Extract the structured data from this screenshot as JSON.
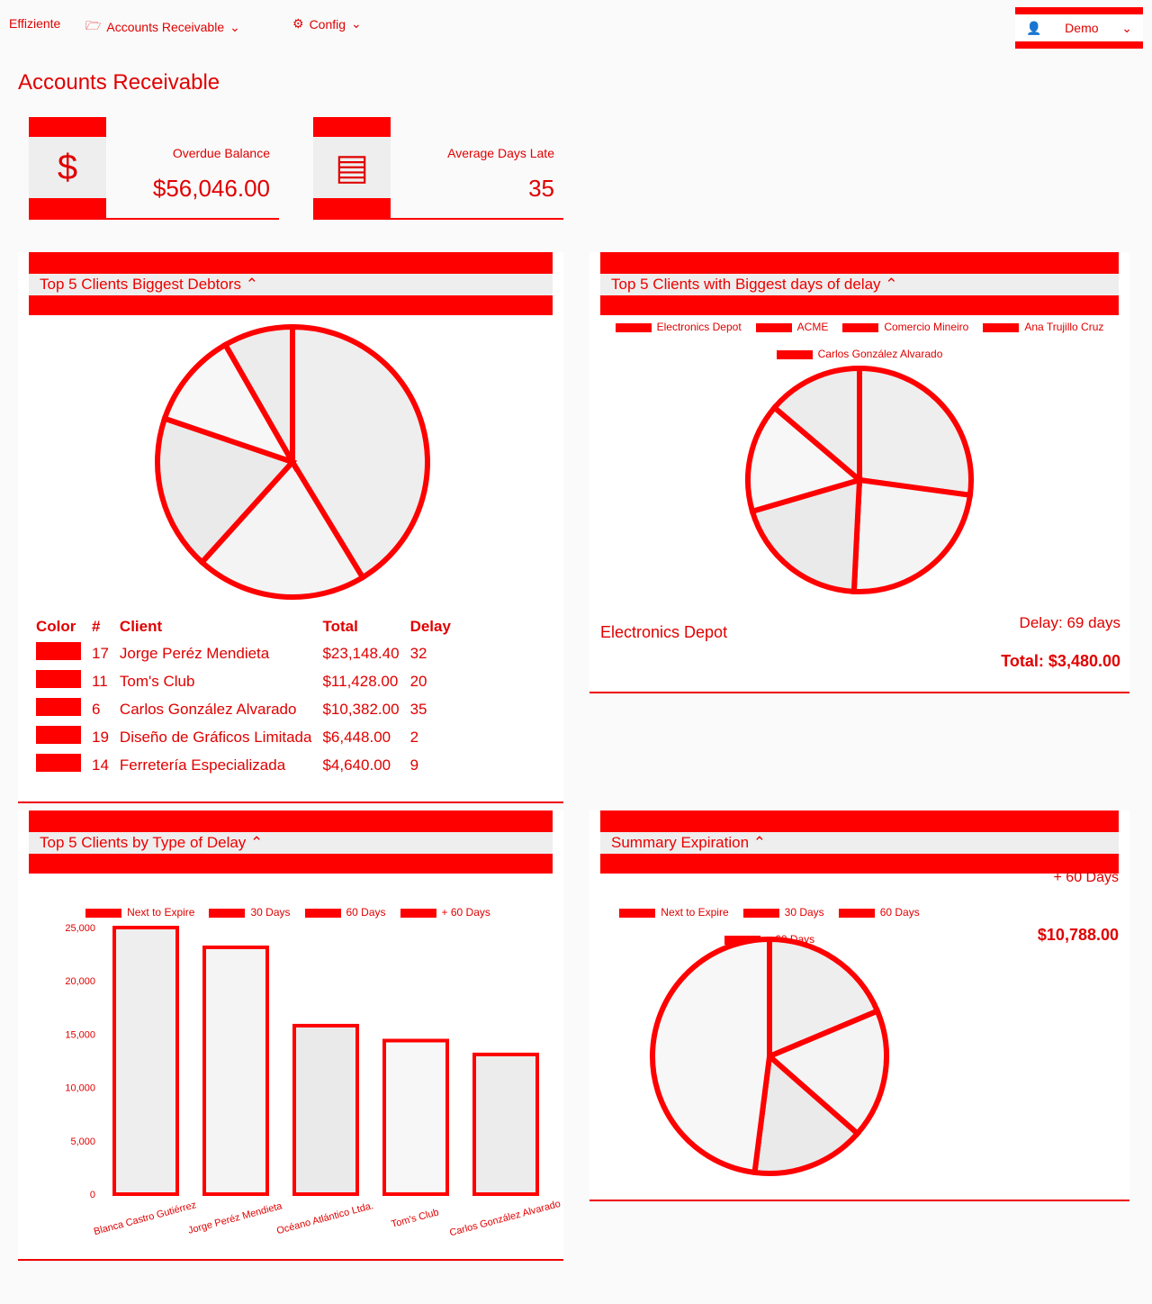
{
  "nav": {
    "brand": "Effiziente",
    "accounts": "Accounts Receivable",
    "config": "Config",
    "user": "Demo"
  },
  "page": {
    "title": "Accounts Receivable"
  },
  "stats": {
    "overdue_label": "Overdue Balance",
    "overdue_value": "$56,046.00",
    "days_label": "Average Days Late",
    "days_value": "35"
  },
  "debtors": {
    "title": "Top 5 Clients Biggest Debtors",
    "headers": {
      "color": "Color",
      "num": "#",
      "client": "Client",
      "total": "Total",
      "delay": "Delay"
    },
    "rows": [
      {
        "num": "17",
        "client": "Jorge Peréz Mendieta",
        "total": "$23,148.40",
        "delay": "32"
      },
      {
        "num": "11",
        "client": "Tom's Club",
        "total": "$11,428.00",
        "delay": "20"
      },
      {
        "num": "6",
        "client": "Carlos González Alvarado",
        "total": "$10,382.00",
        "delay": "35"
      },
      {
        "num": "19",
        "client": "Diseño de Gráficos Limitada",
        "total": "$6,448.00",
        "delay": "2"
      },
      {
        "num": "14",
        "client": "Ferretería Especializada",
        "total": "$4,640.00",
        "delay": "9"
      }
    ]
  },
  "delays": {
    "title": "Top 5 Clients with Biggest days of delay",
    "legend": [
      "Electronics Depot",
      "ACME",
      "Comercio Mineiro",
      "Ana Trujillo Cruz",
      "Carlos González Alvarado"
    ],
    "selected_client": "Electronics Depot",
    "selected_delay": "Delay: 69 days",
    "selected_total": "Total: $3,480.00"
  },
  "type_delay": {
    "title": "Top 5 Clients by Type of Delay",
    "legend": [
      "Next to Expire",
      "30 Days",
      "60 Days",
      "+ 60 Days"
    ]
  },
  "summary": {
    "title": "Summary Expiration",
    "legend": [
      "Next to Expire",
      "30 Days",
      "60 Days",
      "+ 60 Days"
    ],
    "selected_label": "+ 60 Days",
    "selected_value": "$10,788.00"
  },
  "colors": {
    "accent": "#ff0000",
    "slice_fill": "#eeeeee",
    "panel_bg": "#ffffff"
  },
  "chart_data": [
    {
      "type": "pie",
      "title": "Top 5 Clients Biggest Debtors",
      "categories": [
        "Jorge Peréz Mendieta",
        "Tom's Club",
        "Carlos González Alvarado",
        "Diseño de Gráficos Limitada",
        "Ferretería Especializada"
      ],
      "values": [
        23148.4,
        11428.0,
        10382.0,
        6448.0,
        4640.0
      ]
    },
    {
      "type": "pie",
      "title": "Top 5 Clients with Biggest days of delay",
      "categories": [
        "Electronics Depot",
        "ACME",
        "Comercio Mineiro",
        "Ana Trujillo Cruz",
        "Carlos González Alvarado"
      ],
      "values": [
        69,
        60,
        50,
        40,
        35
      ]
    },
    {
      "type": "bar",
      "title": "Top 5 Clients by Type of Delay",
      "categories": [
        "Blanca Castro Gutiérrez",
        "Jorge Peréz Mendieta",
        "Océano Atlántico Ltda.",
        "Tom's Club",
        "Carlos González Alvarado"
      ],
      "series": [
        {
          "name": "Next to Expire",
          "values": [
            0,
            0,
            0,
            0,
            0
          ]
        },
        {
          "name": "30 Days",
          "values": [
            0,
            0,
            0,
            0,
            0
          ]
        },
        {
          "name": "60 Days",
          "values": [
            0,
            0,
            0,
            0,
            0
          ]
        },
        {
          "name": "+ 60 Days",
          "values": [
            25000,
            23148,
            15800,
            14400,
            13100
          ]
        }
      ],
      "yticks": [
        "25,000",
        "20,000",
        "15,000",
        "10,000",
        "5,000",
        "0"
      ],
      "ylim": [
        0,
        25000
      ]
    },
    {
      "type": "pie",
      "title": "Summary Expiration",
      "categories": [
        "Next to Expire",
        "30 Days",
        "60 Days",
        "+ 60 Days"
      ],
      "values": [
        4200,
        4000,
        3500,
        10788
      ]
    }
  ]
}
